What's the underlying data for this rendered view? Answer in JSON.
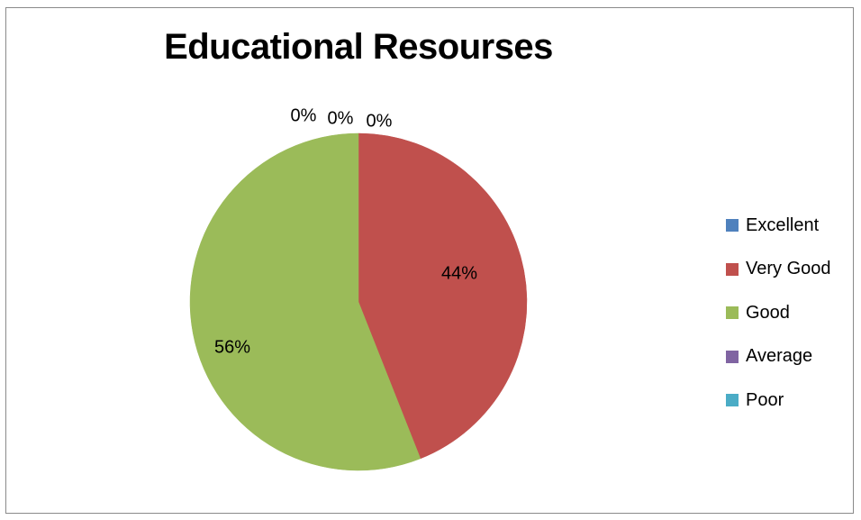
{
  "chart_data": {
    "type": "pie",
    "title": "Educational Resourses",
    "categories": [
      "Excellent",
      "Very Good",
      "Good",
      "Average",
      "Poor"
    ],
    "values": [
      0,
      44,
      56,
      0,
      0
    ],
    "data_labels": [
      "0%",
      "44%",
      "56%",
      "0%",
      "0%"
    ],
    "colors": [
      "#4f81bd",
      "#c0504d",
      "#9bbb59",
      "#8064a2",
      "#4bacc6"
    ],
    "legend_position": "right"
  }
}
